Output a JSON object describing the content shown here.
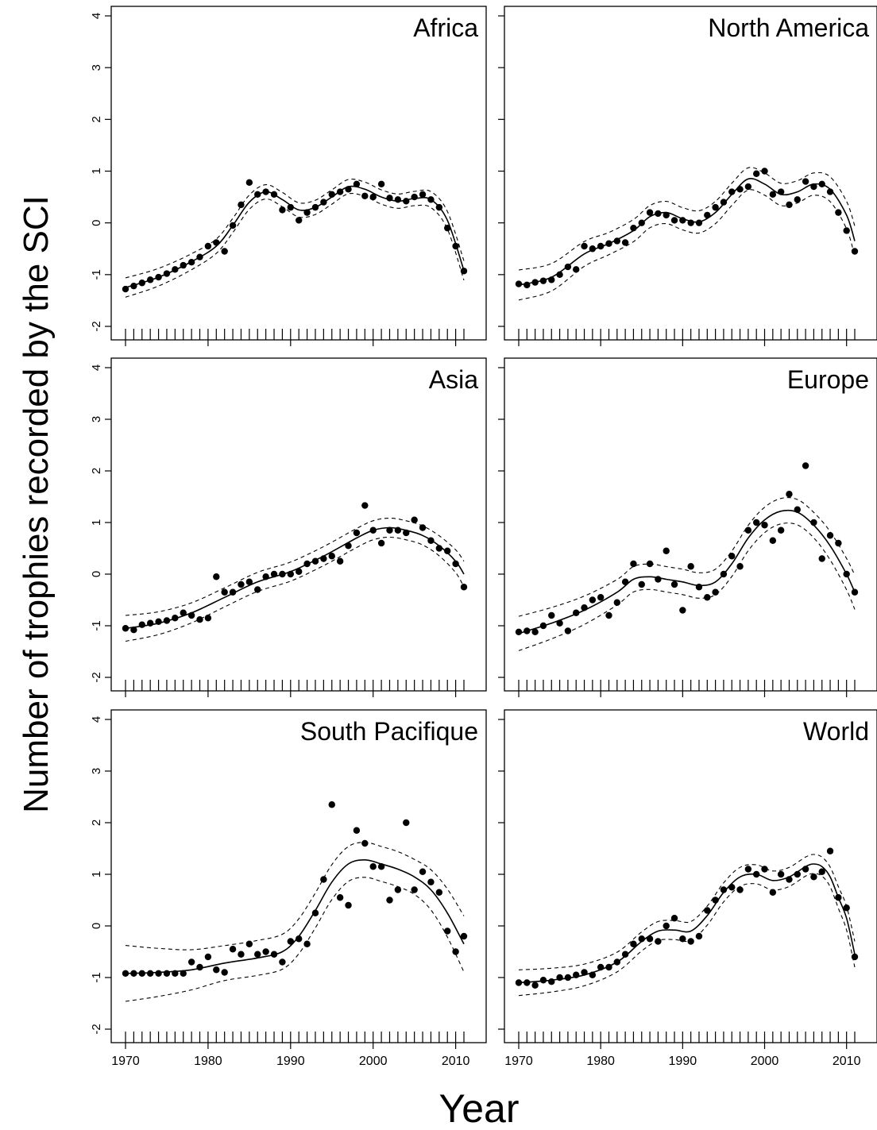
{
  "figure": {
    "ylabel": "Number of trophies recorded by the SCI",
    "xlabel": "Year"
  },
  "chart_data": [
    {
      "type": "scatter",
      "title": "Africa",
      "xlim": [
        1970,
        2011
      ],
      "ylim": [
        -2,
        4
      ],
      "xticks": [
        "1970",
        "1980",
        "1990",
        "2000",
        "2010"
      ],
      "yticks": [
        "-2",
        "-1",
        "0",
        "1",
        "2",
        "3",
        "4"
      ],
      "series": [
        {
          "x": [
            1970,
            1971,
            1972,
            1973,
            1974,
            1975,
            1976,
            1977,
            1978,
            1979,
            1980,
            1981,
            1982,
            1983,
            1984,
            1985,
            1986,
            1987,
            1988,
            1989,
            1990,
            1991,
            1992,
            1993,
            1994,
            1995,
            1996,
            1997,
            1998,
            1999,
            2000,
            2001,
            2002,
            2003,
            2004,
            2005,
            2006,
            2007,
            2008,
            2009,
            2010,
            2011
          ],
          "y": [
            -1.28,
            -1.22,
            -1.16,
            -1.1,
            -1.05,
            -0.98,
            -0.9,
            -0.82,
            -0.76,
            -0.66,
            -0.45,
            -0.38,
            -0.55,
            -0.05,
            0.35,
            0.78,
            0.55,
            0.6,
            0.55,
            0.25,
            0.3,
            0.05,
            0.2,
            0.3,
            0.4,
            0.55,
            0.6,
            0.65,
            0.75,
            0.52,
            0.5,
            0.75,
            0.48,
            0.45,
            0.42,
            0.5,
            0.55,
            0.45,
            0.3,
            -0.1,
            -0.45,
            -0.93
          ]
        }
      ],
      "fit": {
        "x": [
          1970,
          1974,
          1978,
          1981,
          1983,
          1985,
          1987,
          1989,
          1991,
          1993,
          1995,
          1997,
          1999,
          2001,
          2003,
          2005,
          2007,
          2009,
          2011
        ],
        "y": [
          -1.25,
          -1.05,
          -0.75,
          -0.45,
          -0.05,
          0.4,
          0.6,
          0.45,
          0.25,
          0.3,
          0.5,
          0.7,
          0.65,
          0.5,
          0.42,
          0.47,
          0.45,
          0.05,
          -0.92
        ]
      }
    },
    {
      "type": "scatter",
      "title": "North America",
      "xlim": [
        1970,
        2011
      ],
      "ylim": [
        -2,
        4
      ],
      "xticks": [
        "1970",
        "1980",
        "1990",
        "2000",
        "2010"
      ],
      "yticks": [
        "-2",
        "-1",
        "0",
        "1",
        "2",
        "3",
        "4"
      ],
      "series": [
        {
          "x": [
            1970,
            1971,
            1972,
            1973,
            1974,
            1975,
            1976,
            1977,
            1978,
            1979,
            1980,
            1981,
            1982,
            1983,
            1984,
            1985,
            1986,
            1987,
            1988,
            1989,
            1990,
            1991,
            1992,
            1993,
            1994,
            1995,
            1996,
            1997,
            1998,
            1999,
            2000,
            2001,
            2002,
            2003,
            2004,
            2005,
            2006,
            2007,
            2008,
            2009,
            2010,
            2011
          ],
          "y": [
            -1.18,
            -1.2,
            -1.15,
            -1.12,
            -1.1,
            -1.0,
            -0.85,
            -0.9,
            -0.45,
            -0.5,
            -0.45,
            -0.4,
            -0.35,
            -0.38,
            -0.1,
            0.0,
            0.2,
            0.18,
            0.15,
            0.05,
            0.05,
            0.0,
            0.0,
            0.15,
            0.3,
            0.4,
            0.6,
            0.65,
            0.7,
            0.95,
            1.0,
            0.55,
            0.6,
            0.35,
            0.45,
            0.8,
            0.7,
            0.75,
            0.6,
            0.2,
            -0.15,
            -0.55
          ]
        }
      ],
      "fit": {
        "x": [
          1970,
          1974,
          1978,
          1981,
          1984,
          1986,
          1988,
          1990,
          1992,
          1994,
          1996,
          1998,
          2000,
          2002,
          2004,
          2006,
          2008,
          2010,
          2011
        ],
        "y": [
          -1.2,
          -1.05,
          -0.6,
          -0.4,
          -0.15,
          0.12,
          0.2,
          0.08,
          0.02,
          0.2,
          0.55,
          0.85,
          0.75,
          0.55,
          0.6,
          0.75,
          0.65,
          0.15,
          -0.35
        ]
      }
    },
    {
      "type": "scatter",
      "title": "Asia",
      "xlim": [
        1970,
        2011
      ],
      "ylim": [
        -2,
        4
      ],
      "xticks": [
        "1970",
        "1980",
        "1990",
        "2000",
        "2010"
      ],
      "yticks": [
        "-2",
        "-1",
        "0",
        "1",
        "2",
        "3",
        "4"
      ],
      "series": [
        {
          "x": [
            1970,
            1971,
            1972,
            1973,
            1974,
            1975,
            1976,
            1977,
            1978,
            1979,
            1980,
            1981,
            1982,
            1983,
            1984,
            1985,
            1986,
            1987,
            1988,
            1989,
            1990,
            1991,
            1992,
            1993,
            1994,
            1995,
            1996,
            1997,
            1998,
            1999,
            2000,
            2001,
            2002,
            2003,
            2004,
            2005,
            2006,
            2007,
            2008,
            2009,
            2010,
            2011
          ],
          "y": [
            -1.05,
            -1.08,
            -0.98,
            -0.95,
            -0.92,
            -0.9,
            -0.85,
            -0.75,
            -0.8,
            -0.88,
            -0.85,
            -0.05,
            -0.35,
            -0.35,
            -0.2,
            -0.15,
            -0.3,
            -0.05,
            0.0,
            0.0,
            0.0,
            0.05,
            0.2,
            0.25,
            0.3,
            0.35,
            0.25,
            0.55,
            0.8,
            1.33,
            0.85,
            0.6,
            0.85,
            0.85,
            0.8,
            1.05,
            0.9,
            0.65,
            0.5,
            0.45,
            0.2,
            -0.25
          ]
        }
      ],
      "fit": {
        "x": [
          1970,
          1974,
          1978,
          1982,
          1986,
          1990,
          1994,
          1998,
          2000,
          2002,
          2004,
          2006,
          2008,
          2010,
          2011
        ],
        "y": [
          -1.05,
          -0.95,
          -0.75,
          -0.45,
          -0.15,
          0.05,
          0.35,
          0.7,
          0.85,
          0.9,
          0.85,
          0.75,
          0.55,
          0.25,
          0.0
        ]
      }
    },
    {
      "type": "scatter",
      "title": "Europe",
      "xlim": [
        1970,
        2011
      ],
      "ylim": [
        -2,
        4
      ],
      "xticks": [
        "1970",
        "1980",
        "1990",
        "2000",
        "2010"
      ],
      "yticks": [
        "-2",
        "-1",
        "0",
        "1",
        "2",
        "3",
        "4"
      ],
      "series": [
        {
          "x": [
            1970,
            1971,
            1972,
            1973,
            1974,
            1975,
            1976,
            1977,
            1978,
            1979,
            1980,
            1981,
            1982,
            1983,
            1984,
            1985,
            1986,
            1987,
            1988,
            1989,
            1990,
            1991,
            1992,
            1993,
            1994,
            1995,
            1996,
            1997,
            1998,
            1999,
            2000,
            2001,
            2002,
            2003,
            2004,
            2005,
            2006,
            2007,
            2008,
            2009,
            2010,
            2011
          ],
          "y": [
            -1.12,
            -1.1,
            -1.12,
            -1.0,
            -0.8,
            -0.95,
            -1.1,
            -0.75,
            -0.65,
            -0.5,
            -0.45,
            -0.8,
            -0.55,
            -0.15,
            0.2,
            -0.2,
            0.2,
            -0.1,
            0.45,
            -0.2,
            -0.7,
            0.15,
            -0.25,
            -0.45,
            -0.35,
            0.0,
            0.35,
            0.15,
            0.85,
            1.0,
            0.95,
            0.65,
            0.85,
            1.55,
            1.25,
            2.1,
            1.0,
            0.3,
            0.75,
            0.6,
            0.0,
            -0.35
          ]
        }
      ],
      "fit": {
        "x": [
          1970,
          1974,
          1978,
          1982,
          1984,
          1986,
          1988,
          1990,
          1992,
          1994,
          1996,
          1998,
          2000,
          2002,
          2004,
          2006,
          2008,
          2010,
          2011
        ],
        "y": [
          -1.15,
          -0.95,
          -0.7,
          -0.35,
          -0.1,
          -0.05,
          -0.1,
          -0.15,
          -0.22,
          -0.15,
          0.2,
          0.7,
          1.05,
          1.22,
          1.2,
          0.95,
          0.55,
          0.0,
          -0.35
        ]
      }
    },
    {
      "type": "scatter",
      "title": "South Pacifique",
      "xlim": [
        1970,
        2011
      ],
      "ylim": [
        -2,
        4
      ],
      "xticks": [
        "1970",
        "1980",
        "1990",
        "2000",
        "2010"
      ],
      "yticks": [
        "-2",
        "-1",
        "0",
        "1",
        "2",
        "3",
        "4"
      ],
      "series": [
        {
          "x": [
            1970,
            1971,
            1972,
            1973,
            1974,
            1975,
            1976,
            1977,
            1978,
            1979,
            1980,
            1981,
            1982,
            1983,
            1984,
            1985,
            1986,
            1987,
            1988,
            1989,
            1990,
            1991,
            1992,
            1993,
            1994,
            1995,
            1996,
            1997,
            1998,
            1999,
            2000,
            2001,
            2002,
            2003,
            2004,
            2005,
            2006,
            2007,
            2008,
            2009,
            2010,
            2011
          ],
          "y": [
            -0.92,
            -0.92,
            -0.92,
            -0.92,
            -0.92,
            -0.92,
            -0.92,
            -0.92,
            -0.7,
            -0.8,
            -0.6,
            -0.85,
            -0.9,
            -0.45,
            -0.55,
            -0.35,
            -0.55,
            -0.5,
            -0.55,
            -0.7,
            -0.3,
            -0.25,
            -0.35,
            0.25,
            0.9,
            2.35,
            0.55,
            0.4,
            1.85,
            1.6,
            1.15,
            1.15,
            0.5,
            0.7,
            2.0,
            0.7,
            1.05,
            0.85,
            0.65,
            -0.1,
            -0.5,
            -0.2
          ]
        }
      ],
      "fit": {
        "x": [
          1970,
          1974,
          1978,
          1982,
          1986,
          1989,
          1991,
          1993,
          1995,
          1997,
          1999,
          2001,
          2003,
          2005,
          2007,
          2009,
          2011
        ],
        "y": [
          -0.92,
          -0.9,
          -0.85,
          -0.72,
          -0.62,
          -0.5,
          -0.2,
          0.3,
          0.85,
          1.2,
          1.28,
          1.2,
          1.1,
          0.95,
          0.7,
          0.25,
          -0.35
        ]
      }
    },
    {
      "type": "scatter",
      "title": "World",
      "xlim": [
        1970,
        2011
      ],
      "ylim": [
        -2,
        4
      ],
      "xticks": [
        "1970",
        "1980",
        "1990",
        "2000",
        "2010"
      ],
      "yticks": [
        "-2",
        "-1",
        "0",
        "1",
        "2",
        "3",
        "4"
      ],
      "series": [
        {
          "x": [
            1970,
            1971,
            1972,
            1973,
            1974,
            1975,
            1976,
            1977,
            1978,
            1979,
            1980,
            1981,
            1982,
            1983,
            1984,
            1985,
            1986,
            1987,
            1988,
            1989,
            1990,
            1991,
            1992,
            1993,
            1994,
            1995,
            1996,
            1997,
            1998,
            1999,
            2000,
            2001,
            2002,
            2003,
            2004,
            2005,
            2006,
            2007,
            2008,
            2009,
            2010,
            2011
          ],
          "y": [
            -1.1,
            -1.1,
            -1.15,
            -1.05,
            -1.08,
            -1.0,
            -1.0,
            -0.95,
            -0.9,
            -0.95,
            -0.8,
            -0.8,
            -0.7,
            -0.55,
            -0.35,
            -0.25,
            -0.25,
            -0.3,
            0.0,
            0.15,
            -0.25,
            -0.3,
            -0.2,
            0.3,
            0.5,
            0.7,
            0.75,
            0.7,
            1.1,
            1.0,
            1.1,
            0.65,
            1.0,
            0.9,
            1.0,
            1.1,
            0.95,
            1.05,
            1.45,
            0.55,
            0.35,
            -0.6
          ]
        }
      ],
      "fit": {
        "x": [
          1970,
          1974,
          1978,
          1982,
          1985,
          1987,
          1989,
          1991,
          1993,
          1995,
          1997,
          1999,
          2001,
          2003,
          2005,
          2006,
          2007,
          2008,
          2009,
          2010,
          2011
        ],
        "y": [
          -1.1,
          -1.05,
          -0.95,
          -0.7,
          -0.3,
          -0.1,
          -0.08,
          -0.1,
          0.2,
          0.65,
          0.95,
          1.0,
          0.88,
          0.95,
          1.15,
          1.2,
          1.15,
          0.95,
          0.55,
          0.15,
          -0.55
        ]
      }
    }
  ]
}
